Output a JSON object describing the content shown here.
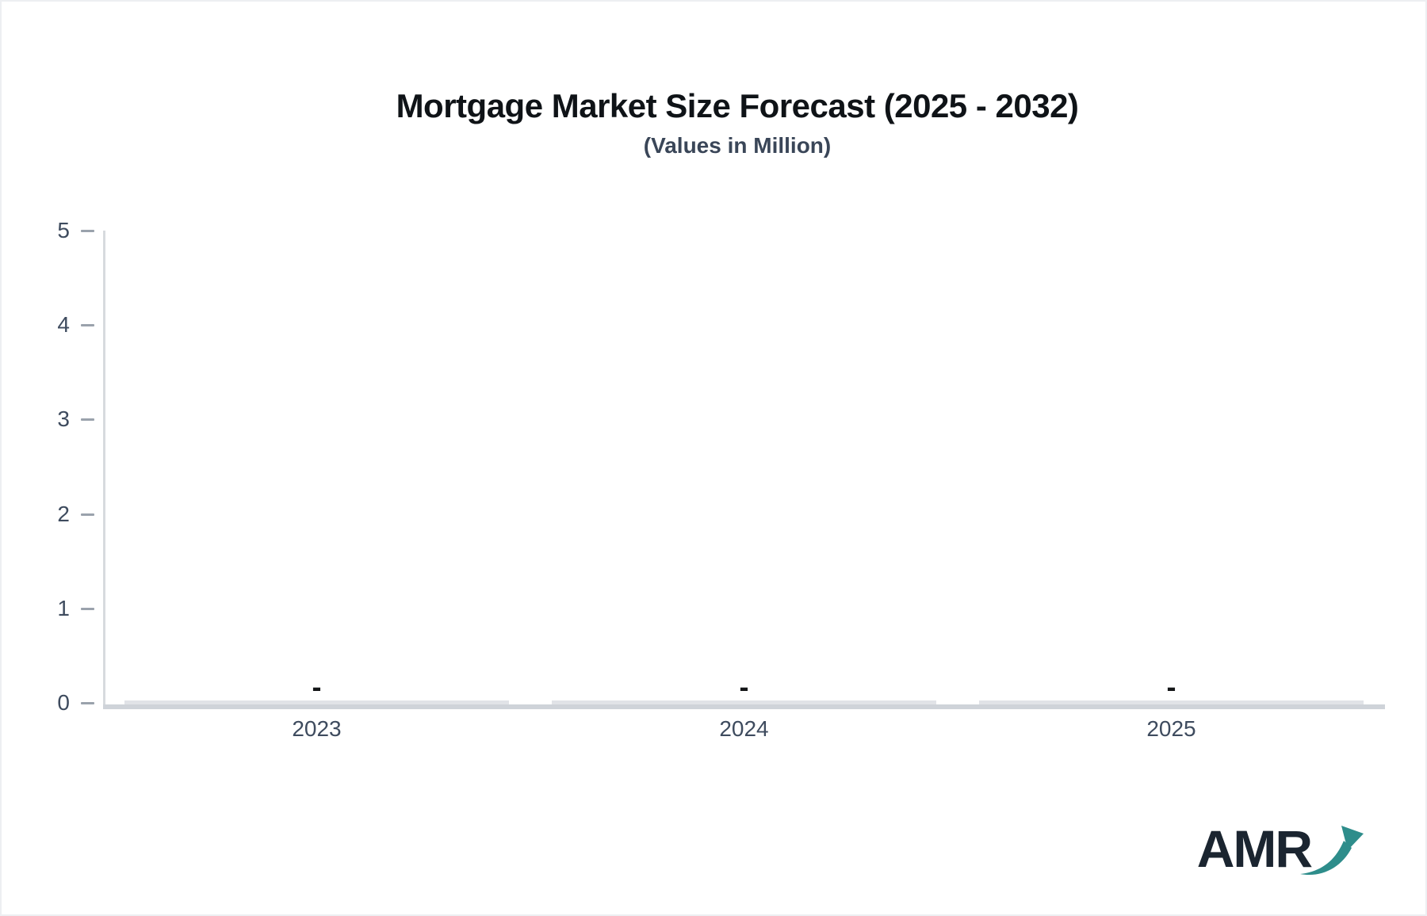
{
  "header": {
    "title": "Mortgage Market Size Forecast (2025 - 2032)",
    "subtitle": "(Values in Million)"
  },
  "chart_data": {
    "type": "bar",
    "title": "Mortgage Market Size Forecast (2025 - 2032)",
    "subtitle": "(Values in Million)",
    "categories": [
      "2023",
      "2024",
      "2025"
    ],
    "values": [
      0,
      0,
      0
    ],
    "data_labels": [
      "-",
      "-",
      "-"
    ],
    "series": [],
    "xlabel": "",
    "ylabel": "",
    "ylim": [
      0,
      5
    ],
    "yticks": [
      0,
      1,
      2,
      3,
      4,
      5
    ],
    "grid": false,
    "legend": false,
    "note": "no data plotted; zero-height placeholder bars with dash value labels"
  },
  "colors": {
    "background": "#ffffff",
    "border": "#edeff2",
    "title": "#0f1317",
    "subtitle": "#3a4658",
    "axis_text": "#3e4b5e",
    "tick": "#9aa2ac",
    "axis_line": "#d7dade",
    "baseline": "#cfd3d9",
    "zero_bar": "#e1e3e7",
    "data_label": "#141618",
    "logo_text": "#1b2530",
    "logo_arrow": "#2e8d8b"
  },
  "logo": {
    "text": "AMR",
    "icon": "trend-up-arrow-icon"
  }
}
